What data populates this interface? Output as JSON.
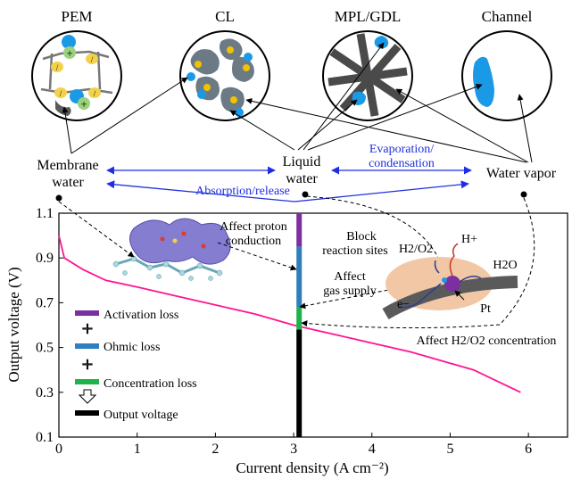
{
  "header": {
    "titles": [
      "PEM",
      "CL",
      "MPL/GDL",
      "Channel"
    ]
  },
  "labels": {
    "membrane_water": [
      "Membrane",
      "water"
    ],
    "liquid_water": [
      "Liquid",
      "water"
    ],
    "water_vapor": "Water vapor",
    "evaporation": [
      "Evaporation/",
      "condensation"
    ],
    "absorption": "Absorption/release",
    "affect_proton": [
      "Affect proton",
      "conduction"
    ],
    "block_sites": [
      "Block",
      "reaction sites"
    ],
    "affect_gas": [
      "Affect",
      "gas supply"
    ],
    "affect_conc": "Affect H2/O2 concentration",
    "h2o2": "H2/O2",
    "hplus": "H+",
    "h2o": "H2O",
    "electron": "e−",
    "pt": "Pt"
  },
  "legend": {
    "items": [
      {
        "label": "Activation loss",
        "color": "#7b2fa0"
      },
      {
        "label": "Ohmic loss",
        "color": "#2f7fbf"
      },
      {
        "label": "Concentration loss",
        "color": "#1fb14a"
      },
      {
        "label": "Output voltage",
        "color": "#000000"
      }
    ],
    "plus": "+"
  },
  "colors": {
    "curve": "#ff1493",
    "arrow_blue": "#1f2fe0",
    "water_blue": "#1a9ae6",
    "gray_struct": "#5a5a5a",
    "catalyst_bg": "#f2c7a6",
    "molecule_blob": "#6f67c8"
  },
  "chart_data": {
    "type": "line",
    "xlabel": "Current density (A cm⁻²)",
    "ylabel": "Output voltage (V)",
    "xlim": [
      0,
      6.5
    ],
    "ylim": [
      0.1,
      1.1
    ],
    "xticks": [
      0,
      1,
      2,
      3,
      4,
      5,
      6
    ],
    "yticks": [
      0.1,
      0.3,
      0.5,
      0.7,
      0.9,
      1.1
    ],
    "series": [
      {
        "x": [
          0,
          0.07,
          0.3,
          0.6,
          1.0,
          1.5,
          2.0,
          2.5,
          3.0,
          3.5,
          4.0,
          4.5,
          5.0,
          5.3,
          5.6,
          5.9
        ],
        "y": [
          1.0,
          0.9,
          0.85,
          0.8,
          0.77,
          0.73,
          0.69,
          0.65,
          0.6,
          0.56,
          0.52,
          0.48,
          0.43,
          0.4,
          0.35,
          0.3
        ]
      }
    ],
    "loss_bar": {
      "x": 3.07,
      "segments": [
        {
          "from": 0.95,
          "to": 1.1,
          "color": "#7b2fa0"
        },
        {
          "from": 0.68,
          "to": 0.95,
          "color": "#2f7fbf"
        },
        {
          "from": 0.58,
          "to": 0.68,
          "color": "#1fb14a"
        },
        {
          "from": 0.1,
          "to": 0.58,
          "color": "#000000"
        }
      ]
    }
  }
}
